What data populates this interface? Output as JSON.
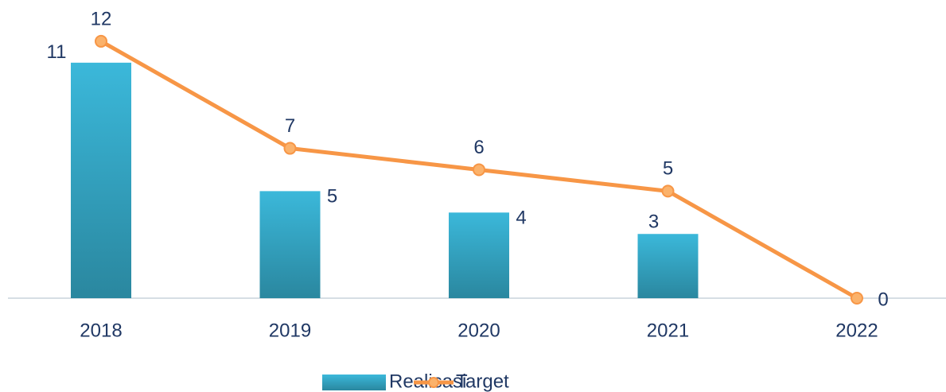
{
  "chart_data": {
    "type": "bar-line",
    "categories": [
      "2018",
      "2019",
      "2020",
      "2021",
      "2022"
    ],
    "series": [
      {
        "name": "Realisasi",
        "type": "bar",
        "color": "#34afd1",
        "values": [
          11,
          5,
          4,
          3,
          null
        ]
      },
      {
        "name": "Target",
        "type": "line",
        "color": "#f79646",
        "values": [
          12,
          7,
          6,
          5,
          0
        ]
      }
    ],
    "ylim": [
      0,
      13
    ],
    "grid": false,
    "legend": "bottom"
  }
}
